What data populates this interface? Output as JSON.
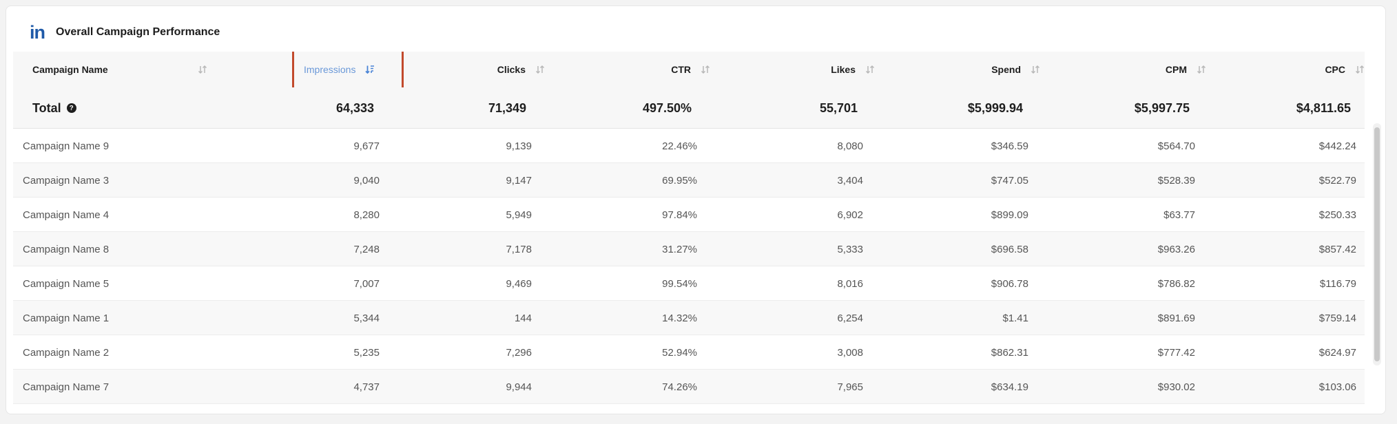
{
  "header": {
    "logo_text": "in",
    "title": "Overall Campaign Performance"
  },
  "table": {
    "columns": [
      {
        "key": "campaign_name",
        "label": "Campaign Name",
        "sort": "none"
      },
      {
        "key": "impressions",
        "label": "Impressions",
        "sort": "descending",
        "active": true
      },
      {
        "key": "clicks",
        "label": "Clicks",
        "sort": "none"
      },
      {
        "key": "ctr",
        "label": "CTR",
        "sort": "none"
      },
      {
        "key": "likes",
        "label": "Likes",
        "sort": "none"
      },
      {
        "key": "spend",
        "label": "Spend",
        "sort": "none"
      },
      {
        "key": "cpm",
        "label": "CPM",
        "sort": "none"
      },
      {
        "key": "cpc",
        "label": "CPC",
        "sort": "none"
      }
    ],
    "total": {
      "label": "Total",
      "impressions": "64,333",
      "clicks": "71,349",
      "ctr": "497.50%",
      "likes": "55,701",
      "spend": "$5,999.94",
      "cpm": "$5,997.75",
      "cpc": "$4,811.65"
    },
    "rows": [
      {
        "campaign_name": "Campaign Name 9",
        "impressions": "9,677",
        "clicks": "9,139",
        "ctr": "22.46%",
        "likes": "8,080",
        "spend": "$346.59",
        "cpm": "$564.70",
        "cpc": "$442.24"
      },
      {
        "campaign_name": "Campaign Name 3",
        "impressions": "9,040",
        "clicks": "9,147",
        "ctr": "69.95%",
        "likes": "3,404",
        "spend": "$747.05",
        "cpm": "$528.39",
        "cpc": "$522.79"
      },
      {
        "campaign_name": "Campaign Name 4",
        "impressions": "8,280",
        "clicks": "5,949",
        "ctr": "97.84%",
        "likes": "6,902",
        "spend": "$899.09",
        "cpm": "$63.77",
        "cpc": "$250.33"
      },
      {
        "campaign_name": "Campaign Name 8",
        "impressions": "7,248",
        "clicks": "7,178",
        "ctr": "31.27%",
        "likes": "5,333",
        "spend": "$696.58",
        "cpm": "$963.26",
        "cpc": "$857.42"
      },
      {
        "campaign_name": "Campaign Name 5",
        "impressions": "7,007",
        "clicks": "9,469",
        "ctr": "99.54%",
        "likes": "8,016",
        "spend": "$906.78",
        "cpm": "$786.82",
        "cpc": "$116.79"
      },
      {
        "campaign_name": "Campaign Name 1",
        "impressions": "5,344",
        "clicks": "144",
        "ctr": "14.32%",
        "likes": "6,254",
        "spend": "$1.41",
        "cpm": "$891.69",
        "cpc": "$759.14"
      },
      {
        "campaign_name": "Campaign Name 2",
        "impressions": "5,235",
        "clicks": "7,296",
        "ctr": "52.94%",
        "likes": "3,008",
        "spend": "$862.31",
        "cpm": "$777.42",
        "cpc": "$624.97"
      },
      {
        "campaign_name": "Campaign Name 7",
        "impressions": "4,737",
        "clicks": "9,944",
        "ctr": "74.26%",
        "likes": "7,965",
        "spend": "$634.19",
        "cpm": "$930.02",
        "cpc": "$103.06"
      }
    ]
  },
  "icons": {
    "logo": "linkedin-logo",
    "sort": "sort-arrows-icon",
    "sort_active": "sort-descending-icon",
    "help": "help-icon"
  },
  "colors": {
    "accent": "#6a98d8",
    "logo": "#1f5aa8",
    "highlight": "#c24a2c"
  }
}
